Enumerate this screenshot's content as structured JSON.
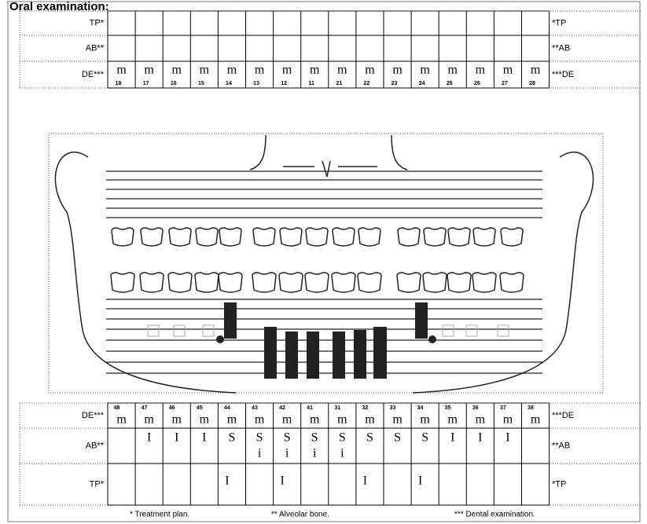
{
  "title": "Oral examination:",
  "upper": {
    "rows": [
      {
        "label": "TP*",
        "right_label": "*TP"
      },
      {
        "label": "AB**",
        "right_label": "**AB"
      },
      {
        "label": "DE***",
        "right_label": "***DE"
      }
    ],
    "teeth": [
      {
        "mark": "m",
        "number": "18"
      },
      {
        "mark": "m",
        "number": "17"
      },
      {
        "mark": "m",
        "number": "16"
      },
      {
        "mark": "m",
        "number": "15"
      },
      {
        "mark": "m",
        "number": "14"
      },
      {
        "mark": "m",
        "number": "13"
      },
      {
        "mark": "m",
        "number": "12"
      },
      {
        "mark": "m",
        "number": "11"
      },
      {
        "mark": "m",
        "number": "21"
      },
      {
        "mark": "m",
        "number": "22"
      },
      {
        "mark": "m",
        "number": "23"
      },
      {
        "mark": "m",
        "number": "24"
      },
      {
        "mark": "m",
        "number": "25"
      },
      {
        "mark": "m",
        "number": "26"
      },
      {
        "mark": "m",
        "number": "27"
      },
      {
        "mark": "m",
        "number": "28"
      }
    ]
  },
  "lower": {
    "rows": [
      {
        "label": "DE***",
        "right_label": "***DE"
      },
      {
        "label": "AB**",
        "right_label": "**AB"
      },
      {
        "label": "TP*",
        "right_label": "*TP"
      }
    ],
    "teeth": [
      {
        "number": "48",
        "de": "m"
      },
      {
        "number": "47",
        "de": "m",
        "ab": "I"
      },
      {
        "number": "46",
        "de": "m",
        "ab": "I"
      },
      {
        "number": "45",
        "de": "m",
        "ab": "I"
      },
      {
        "number": "44",
        "de": "m",
        "ab": "S",
        "tp": "I"
      },
      {
        "number": "43",
        "de": "m",
        "ab": "S",
        "ab_sub": "i"
      },
      {
        "number": "42",
        "de": "m",
        "ab": "S",
        "ab_sub": "i",
        "tp": "I"
      },
      {
        "number": "41",
        "de": "m",
        "ab": "S",
        "ab_sub": "i"
      },
      {
        "number": "31",
        "de": "m",
        "ab": "S",
        "ab_sub": "i"
      },
      {
        "number": "32",
        "de": "m",
        "ab": "S",
        "tp": "I"
      },
      {
        "number": "33",
        "de": "m",
        "ab": "S"
      },
      {
        "number": "34",
        "de": "m",
        "ab": "S",
        "tp": "I"
      },
      {
        "number": "35",
        "de": "m",
        "ab": "I"
      },
      {
        "number": "36",
        "de": "m",
        "ab": "I"
      },
      {
        "number": "37",
        "de": "m",
        "ab": "I"
      },
      {
        "number": "38",
        "de": "m"
      }
    ]
  },
  "footnotes": [
    "* Treatment plan.",
    "** Alveolar bone.",
    "*** Dental examination."
  ]
}
